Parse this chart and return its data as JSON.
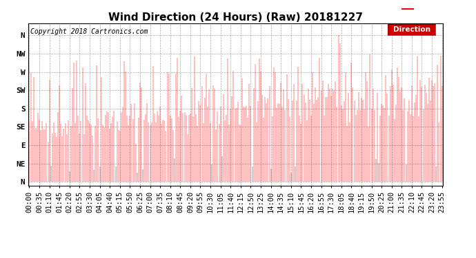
{
  "title": "Wind Direction (24 Hours) (Raw) 20181227",
  "copyright": "Copyright 2018 Cartronics.com",
  "legend_label": "Direction",
  "line_color_red": "#ff0000",
  "line_color_gray": "#333333",
  "background_color": "#ffffff",
  "grid_color": "#aaaaaa",
  "ytick_labels": [
    "N",
    "NW",
    "W",
    "SW",
    "S",
    "SE",
    "E",
    "NE",
    "N"
  ],
  "ytick_values": [
    360,
    315,
    270,
    225,
    180,
    135,
    90,
    45,
    0
  ],
  "ylim": [
    -10,
    390
  ],
  "title_fontsize": 11,
  "copyright_fontsize": 7,
  "tick_fontsize": 7.5,
  "y_tick_fontsize": 8
}
